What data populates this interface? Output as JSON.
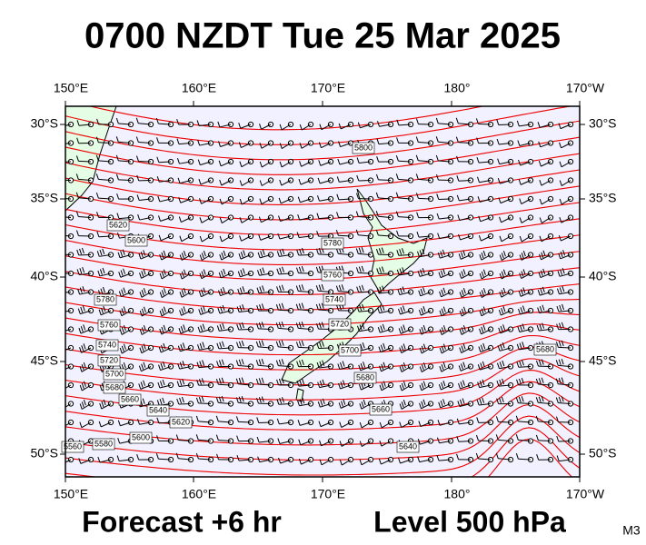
{
  "title": "0700 NZDT Tue 25 Mar 2025",
  "lon_labels": [
    "150°E",
    "160°E",
    "170°E",
    "180°",
    "170°W"
  ],
  "lat_labels": [
    "30°S",
    "35°S",
    "40°S",
    "45°S",
    "50°S"
  ],
  "footer": {
    "forecast": "Forecast +6 hr",
    "level": "Level 500 hPa",
    "model": "M3"
  },
  "contour_labels": [
    5800,
    5780,
    5760,
    5740,
    5720,
    5700,
    5680,
    5660,
    5640,
    5620,
    5600,
    5780,
    5760,
    5740,
    5720,
    5700,
    5680,
    5660,
    5640,
    5600,
    5580,
    5560,
    5620,
    5680
  ]
}
